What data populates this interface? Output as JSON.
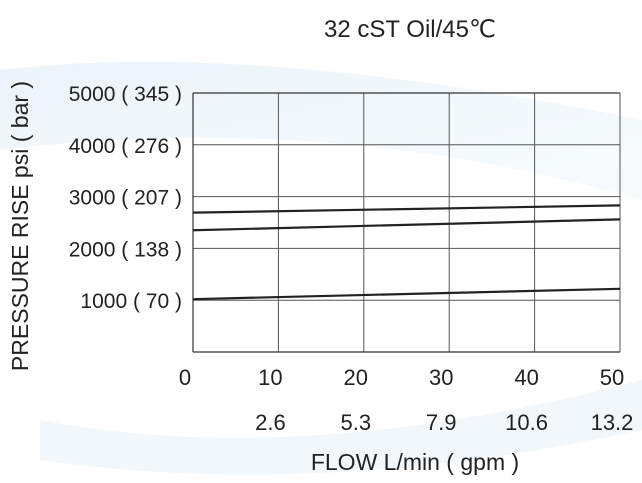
{
  "chart_data": {
    "type": "line",
    "title": "32 cST Oil/45℃",
    "xlabel": "FLOW L/min ( gpm )",
    "ylabel": "PRESSURE RISE psi ( bar )",
    "xlim": [
      0,
      50
    ],
    "ylim": [
      0,
      5000
    ],
    "x_ticks": [
      "0",
      "10",
      "20",
      "30",
      "40",
      "50"
    ],
    "x_ticks_secondary": [
      "2.6",
      "5.3",
      "7.9",
      "10.6",
      "13.2"
    ],
    "y_ticks": [
      "1000 ( 70 )",
      "2000 ( 138 )",
      "3000 ( 207 )",
      "4000 ( 276 )",
      "5000 ( 345 )"
    ],
    "grid": true,
    "series": [
      {
        "x": [
          0,
          50
        ],
        "values": [
          2690,
          2830
        ]
      },
      {
        "x": [
          0,
          50
        ],
        "values": [
          2350,
          2560
        ]
      },
      {
        "x": [
          0,
          50
        ],
        "values": [
          1020,
          1220
        ]
      }
    ]
  }
}
